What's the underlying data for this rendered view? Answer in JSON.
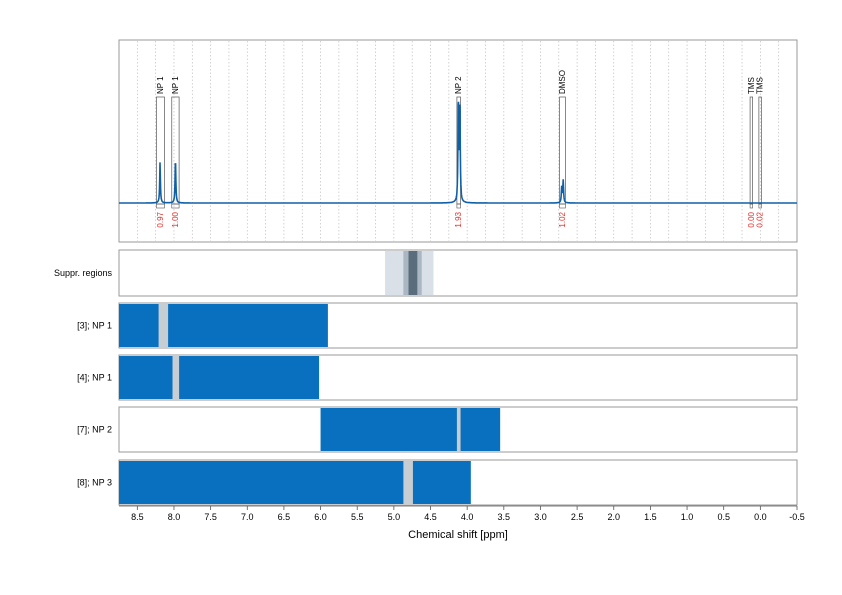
{
  "chart_data": {
    "type": "line",
    "xlabel": "Chemical shift [ppm]",
    "xlim": [
      8.75,
      -0.5
    ],
    "x_ticks": [
      "8.5",
      "8.0",
      "7.5",
      "7.0",
      "6.5",
      "6.0",
      "5.5",
      "5.0",
      "4.5",
      "4.0",
      "3.5",
      "3.0",
      "2.5",
      "2.0",
      "1.5",
      "1.0",
      "0.5",
      "0.0",
      "-0.5"
    ],
    "grid": "vertical dotted",
    "colors": {
      "spectrum": "#1060a8",
      "bar": "#0870be",
      "gap": "#c6cdd3",
      "integral_label": "#e0302a",
      "suppr_outer": "#d9e0e7",
      "suppr_mid": "#aab6c1",
      "suppr_core": "#5a6d7c",
      "frame": "#999999"
    },
    "spectrum": {
      "baseline": 0.0,
      "peaks": [
        {
          "x": 8.19,
          "height": 0.58
        },
        {
          "x": 7.98,
          "height": 0.62
        },
        {
          "x": 4.12,
          "height": 1.45
        },
        {
          "x": 4.1,
          "height": 1.4
        },
        {
          "x": 2.69,
          "height": 0.32
        },
        {
          "x": 2.71,
          "height": 0.22
        }
      ]
    },
    "annotations": [
      {
        "label": "NP 1",
        "x_left": 8.24,
        "x_right": 8.13,
        "integral": "0.97"
      },
      {
        "label": "NP 1",
        "x_left": 8.03,
        "x_right": 7.93,
        "integral": "1.00"
      },
      {
        "label": "NP 2",
        "x_left": 4.14,
        "x_right": 4.09,
        "integral": "1.93"
      },
      {
        "label": "DMSO",
        "x_left": 2.74,
        "x_right": 2.66,
        "integral": "1.02"
      },
      {
        "label": "TMS",
        "x_left": 0.14,
        "x_right": 0.12,
        "integral": "0.00"
      },
      {
        "label": "TMS",
        "x_left": 0.02,
        "x_right": -0.01,
        "integral": "0.02"
      }
    ],
    "suppression": {
      "label": "Suppr. regions",
      "outer": [
        5.12,
        4.46
      ],
      "mid": [
        4.87,
        4.62
      ],
      "core": [
        4.8,
        4.68
      ]
    },
    "tracks": [
      {
        "label": "[3]; NP 1",
        "range": [
          8.75,
          5.9
        ],
        "gap": [
          8.21,
          8.08
        ]
      },
      {
        "label": "[4]; NP 1",
        "range": [
          8.75,
          6.02
        ],
        "gap": [
          8.02,
          7.93
        ]
      },
      {
        "label": "[7]; NP 2",
        "range": [
          6.0,
          3.55
        ],
        "gap": [
          4.14,
          4.09
        ]
      },
      {
        "label": "[8]; NP 3",
        "range": [
          8.75,
          3.95
        ],
        "gap": [
          4.87,
          4.74
        ]
      }
    ]
  }
}
